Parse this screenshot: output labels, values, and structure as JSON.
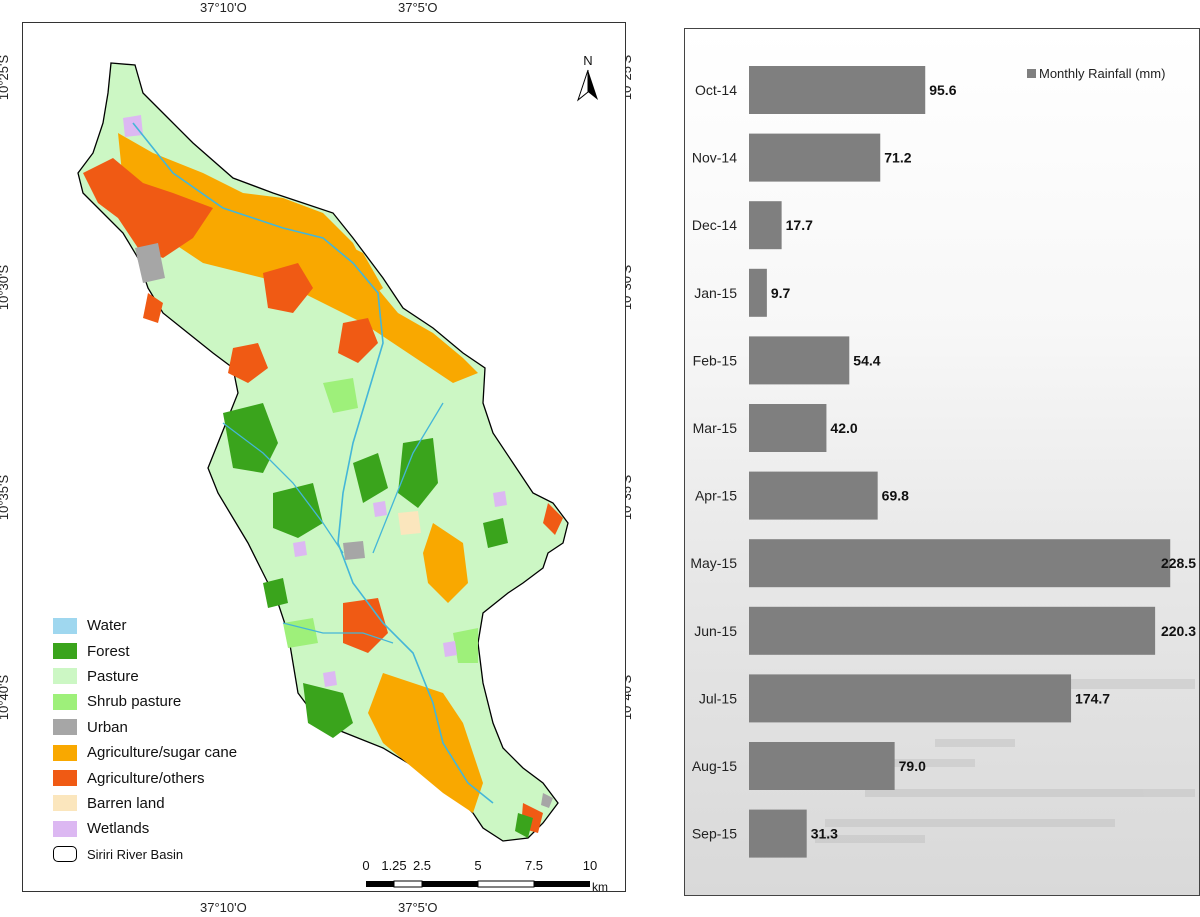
{
  "map": {
    "coords_top": [
      "37°10'O",
      "37°5'O"
    ],
    "coords_bottom": [
      "37°10'O",
      "37°5'O"
    ],
    "coords_left": [
      "10°25'S",
      "10°30'S",
      "10°35'S",
      "10°40'S"
    ],
    "coords_right": [
      "10°25'S",
      "10°30'S",
      "10°35'S",
      "10°40'S"
    ],
    "north_label": "N",
    "legend": [
      {
        "label": "Water",
        "color": "#9fd7ef"
      },
      {
        "label": "Forest",
        "color": "#3aa41c"
      },
      {
        "label": "Pasture",
        "color": "#ccf7c4"
      },
      {
        "label": "Shrub pasture",
        "color": "#9ef07a"
      },
      {
        "label": "Urban",
        "color": "#a6a6a6"
      },
      {
        "label": "Agriculture/sugar cane",
        "color": "#f9a800"
      },
      {
        "label": "Agriculture/others",
        "color": "#f05a14"
      },
      {
        "label": "Barren land",
        "color": "#fbe6bd"
      },
      {
        "label": "Wetlands",
        "color": "#dcb8f2"
      }
    ],
    "basin_label": "Siriri River Basin",
    "scale_labels": [
      "0",
      "1.25",
      "2.5",
      "5",
      "7.5",
      "10"
    ],
    "scale_unit": "km"
  },
  "chart_data": {
    "type": "bar",
    "orientation": "horizontal",
    "categories": [
      "Oct-14",
      "Nov-14",
      "Dec-14",
      "Jan-15",
      "Feb-15",
      "Mar-15",
      "Apr-15",
      "May-15",
      "Jun-15",
      "Jul-15",
      "Aug-15",
      "Sep-15"
    ],
    "series": [
      {
        "name": "Monthly Rainfall (mm)",
        "values": [
          95.6,
          71.2,
          17.7,
          9.7,
          54.4,
          42.0,
          69.8,
          228.5,
          220.3,
          174.7,
          79.0,
          31.3
        ],
        "color": "#7f7f7f"
      }
    ],
    "value_labels": [
      "95.6",
      "71.2",
      "17.7",
      "9.7",
      "54.4",
      "42.0",
      "69.8",
      "228.5",
      "220.3",
      "174.7",
      "79.0",
      "31.3"
    ],
    "xlim": [
      0,
      230
    ],
    "legend_position": "top-right",
    "grid": false
  }
}
